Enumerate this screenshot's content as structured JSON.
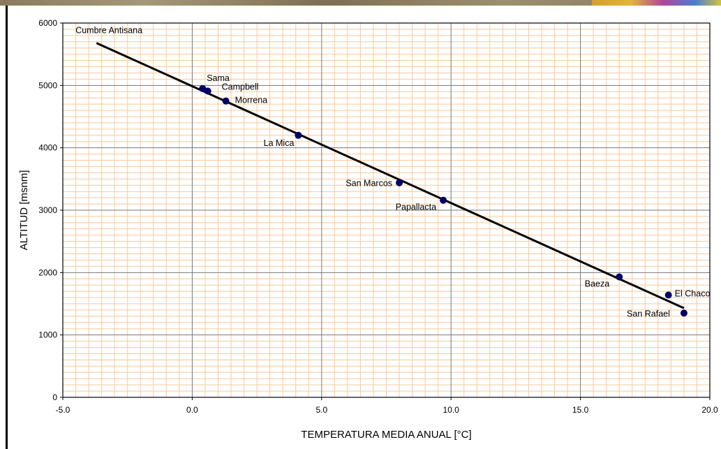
{
  "chart_data": {
    "type": "scatter",
    "title": "",
    "xlabel": "TEMPERATURA MEDIA ANUAL [°C]",
    "ylabel": "ALTITUD [msnm]",
    "xlim": [
      -5.0,
      20.0
    ],
    "ylim": [
      0,
      6000
    ],
    "x_ticks": [
      "-5.0",
      "0.0",
      "5.0",
      "10.0",
      "15.0",
      "20.0"
    ],
    "y_ticks": [
      "0",
      "1000",
      "2000",
      "3000",
      "4000",
      "5000",
      "6000"
    ],
    "grid": true,
    "points": [
      {
        "label": "Sama",
        "x": 0.4,
        "y": 4950
      },
      {
        "label": "Campbell",
        "x": 0.6,
        "y": 4910
      },
      {
        "label": "Morrena",
        "x": 1.3,
        "y": 4750
      },
      {
        "label": "La Mica",
        "x": 4.1,
        "y": 4200
      },
      {
        "label": "San Marcos",
        "x": 8.0,
        "y": 3440
      },
      {
        "label": "Papallacta",
        "x": 9.7,
        "y": 3160
      },
      {
        "label": "Baeza",
        "x": 16.5,
        "y": 1930
      },
      {
        "label": "El Chaco",
        "x": 18.4,
        "y": 1640
      },
      {
        "label": "San Rafael",
        "x": 19.0,
        "y": 1350
      }
    ],
    "trendline": {
      "x": [
        -3.7,
        19.0
      ],
      "y": [
        5680,
        1430
      ]
    },
    "annotations": [
      {
        "text": "Cumbre Antisana",
        "x": -3.7,
        "y": 5680
      }
    ],
    "colors": {
      "point": "#000066",
      "line": "#000000",
      "grid_major": "#777777",
      "grid_minor": "#f7c99a",
      "plot_border": "#000000"
    }
  }
}
